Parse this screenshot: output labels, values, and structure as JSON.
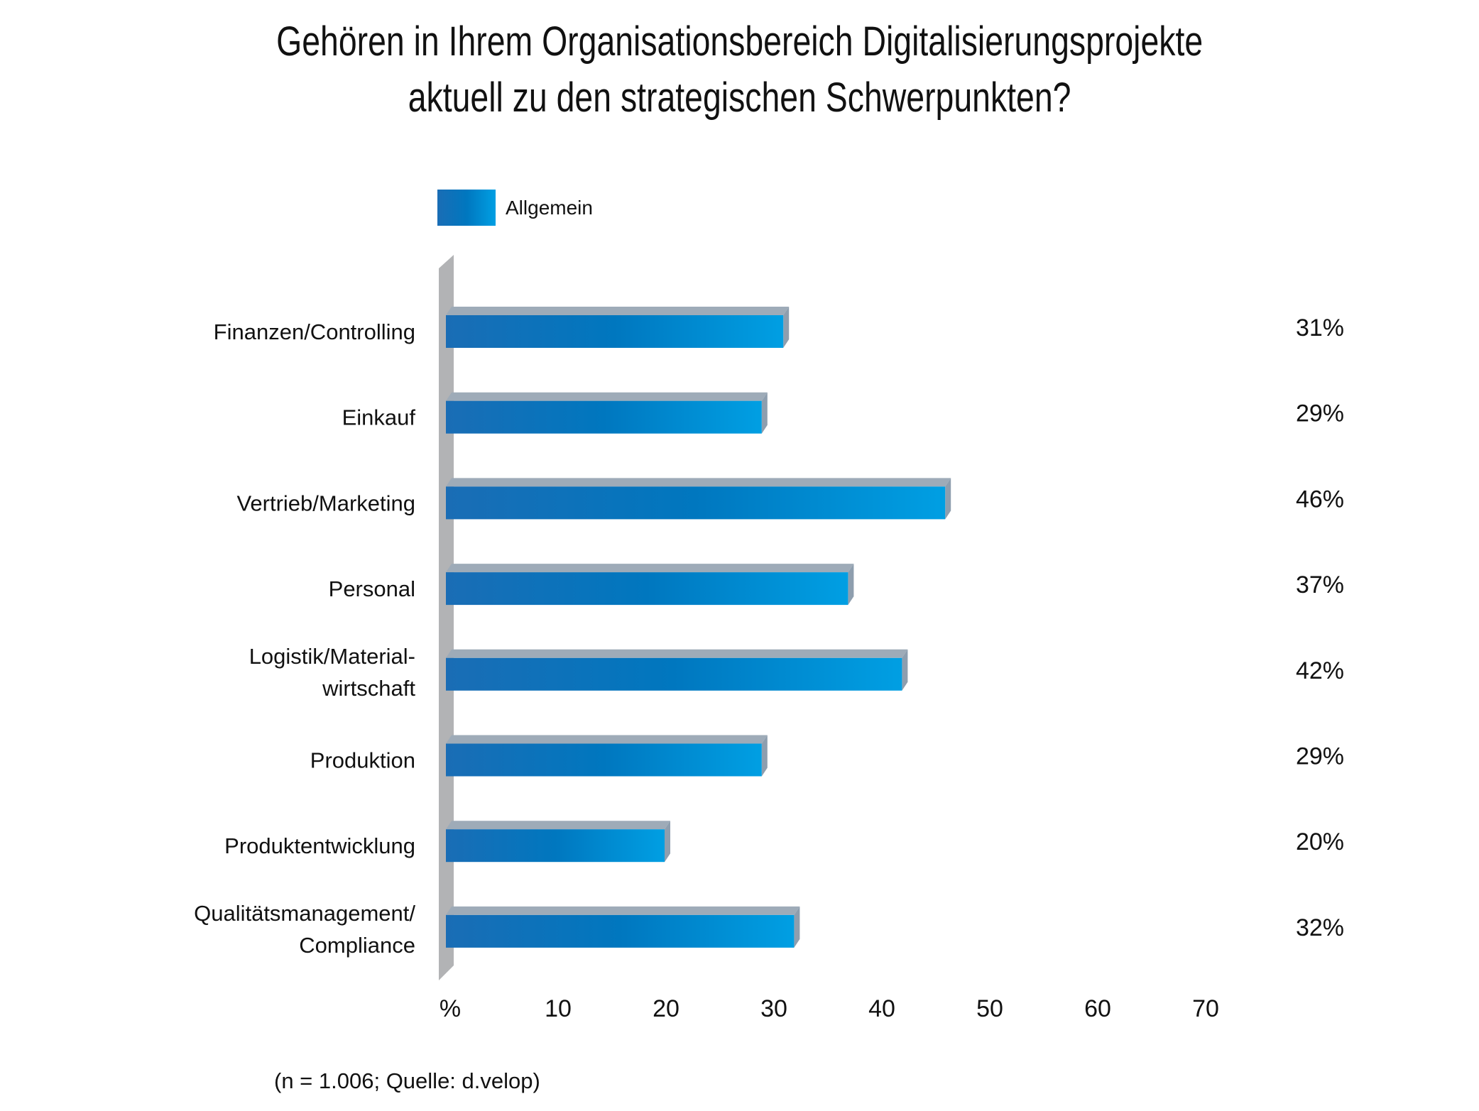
{
  "title": {
    "line1": "Gehören in Ihrem Organisationsbereich Digitalisierungsprojekte",
    "line2": "aktuell zu den strategischen Schwerpunkten?"
  },
  "legend": {
    "label": "Allgemein",
    "icon": "gradient-swatch"
  },
  "footnote": "(n = 1.006; Quelle: d.velop)",
  "colors": {
    "bar_left": "#1a6db5",
    "bar_mid": "#0077bf",
    "bar_right": "#009fe3",
    "bar_top": "#9eabb8",
    "bar_side": "#8e9eae",
    "axis_wall": "#b2b3b5"
  },
  "chart_data": {
    "type": "bar",
    "orientation": "horizontal",
    "title": "Gehören in Ihrem Organisationsbereich Digitalisierungsprojekte aktuell zu den strategischen Schwerpunkten?",
    "xlabel": "%",
    "ylabel": "",
    "xlim": [
      0,
      70
    ],
    "x_ticks": [
      "%",
      "10",
      "20",
      "30",
      "40",
      "50",
      "60",
      "70"
    ],
    "grid": false,
    "legend": {
      "entries": [
        "Allgemein"
      ],
      "placement": "top-left"
    },
    "categories": [
      [
        "Finanzen/Controlling"
      ],
      [
        "Einkauf"
      ],
      [
        "Vertrieb/Marketing"
      ],
      [
        "Personal"
      ],
      [
        "Logistik/Material-",
        "wirtschaft"
      ],
      [
        "Produktion"
      ],
      [
        "Produktentwicklung"
      ],
      [
        "Qualitätsmanagement/",
        "Compliance"
      ]
    ],
    "series": [
      {
        "name": "Allgemein",
        "values": [
          31,
          29,
          46,
          37,
          42,
          29,
          20,
          32
        ]
      }
    ],
    "value_labels": [
      "31%",
      "29%",
      "46%",
      "37%",
      "42%",
      "29%",
      "20%",
      "32%"
    ],
    "annotation": "(n = 1.006; Quelle: d.velop)"
  }
}
